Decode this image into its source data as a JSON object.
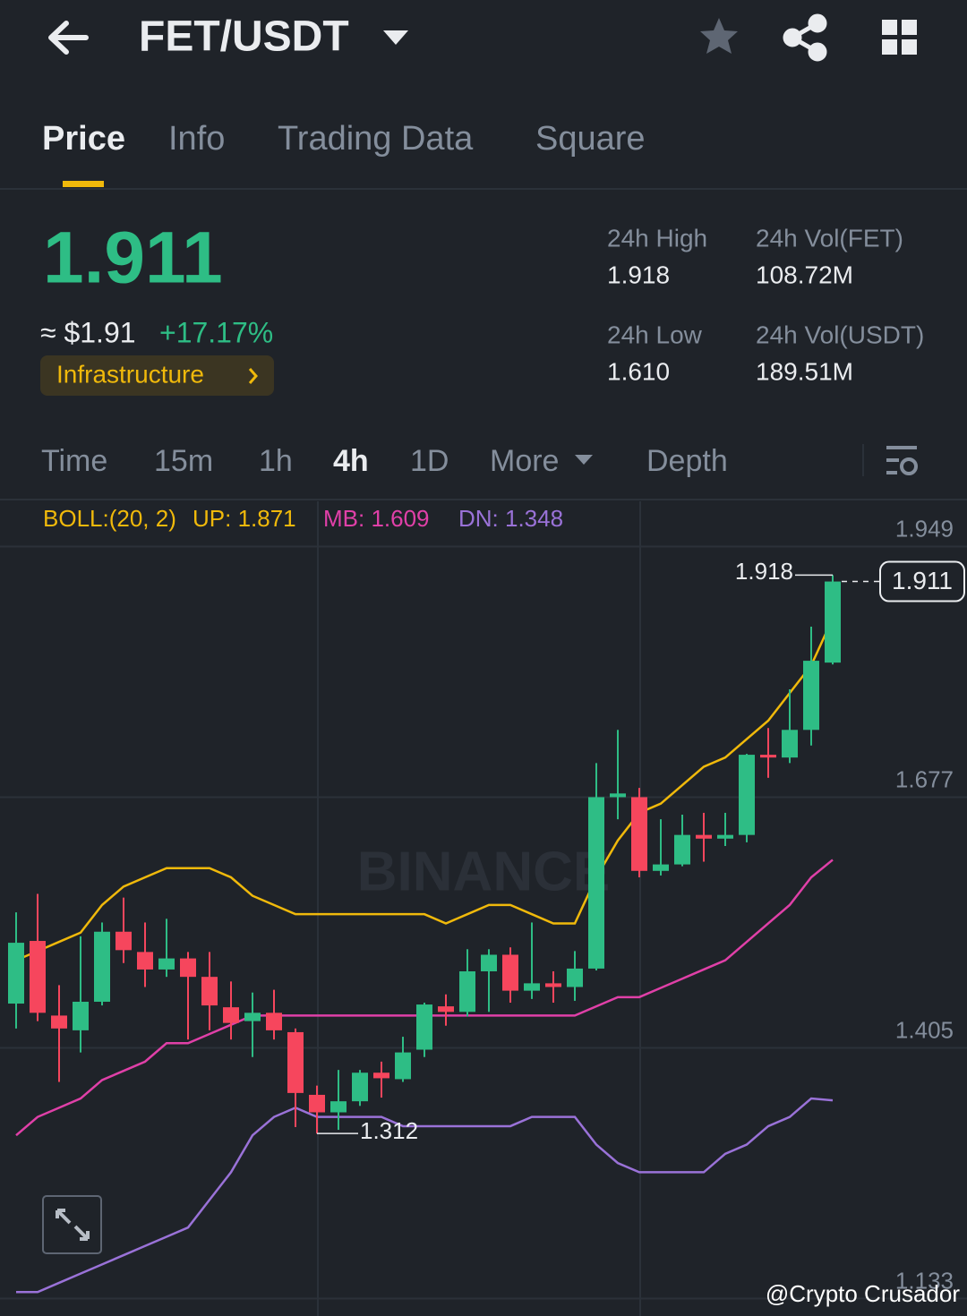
{
  "header": {
    "title": "FET/USDT"
  },
  "tabs": [
    "Price",
    "Info",
    "Trading Data",
    "Square"
  ],
  "price": {
    "last": "1.911",
    "fiat": "≈ $1.91",
    "change": "+17.17%",
    "tag": "Infrastructure"
  },
  "stats": [
    {
      "label": "24h High",
      "value": "1.918"
    },
    {
      "label": "24h Vol(FET)",
      "value": "108.72M"
    },
    {
      "label": "24h Low",
      "value": "1.610"
    },
    {
      "label": "24h Vol(USDT)",
      "value": "189.51M"
    }
  ],
  "intervals": [
    "Time",
    "15m",
    "1h",
    "4h",
    "1D",
    "More",
    "Depth"
  ],
  "watermark": "BINANCE",
  "credit": "@Crypto Crusador",
  "chart_data": {
    "type": "candlestick",
    "legend": [
      "BOLL:(20, 2)",
      "UP: 1.871",
      "MB: 1.609",
      "DN: 1.348"
    ],
    "legend_colors": [
      "#f0b90b",
      "#f0b90b",
      "#e040a8",
      "#9a72d8"
    ],
    "ylim": [
      1.114,
      1.998
    ],
    "yticks": [
      1.949,
      1.677,
      1.405,
      1.133
    ],
    "grid": true,
    "up_color": "#2ebd85",
    "down_color": "#f6465d",
    "open": [
      1.453,
      1.521,
      1.44,
      1.424,
      1.455,
      1.531,
      1.509,
      1.49,
      1.502,
      1.482,
      1.449,
      1.434,
      1.443,
      1.422,
      1.354,
      1.335,
      1.347,
      1.378,
      1.371,
      1.403,
      1.45,
      1.444,
      1.488,
      1.506,
      1.467,
      1.475,
      1.471,
      1.491,
      1.677,
      1.677,
      1.597,
      1.604,
      1.636,
      1.632,
      1.636,
      1.723,
      1.72,
      1.75,
      1.823
    ],
    "high": [
      1.552,
      1.572,
      1.473,
      1.526,
      1.541,
      1.568,
      1.541,
      1.545,
      1.509,
      1.509,
      1.477,
      1.465,
      1.468,
      1.426,
      1.364,
      1.381,
      1.381,
      1.39,
      1.417,
      1.454,
      1.463,
      1.512,
      1.512,
      1.514,
      1.541,
      1.488,
      1.51,
      1.714,
      1.75,
      1.687,
      1.653,
      1.658,
      1.66,
      1.66,
      1.724,
      1.752,
      1.794,
      1.862,
      1.918
    ],
    "low": [
      1.426,
      1.434,
      1.368,
      1.4,
      1.451,
      1.497,
      1.471,
      1.482,
      1.414,
      1.424,
      1.414,
      1.395,
      1.414,
      1.319,
      1.312,
      1.316,
      1.342,
      1.351,
      1.368,
      1.395,
      1.429,
      1.439,
      1.444,
      1.454,
      1.458,
      1.454,
      1.456,
      1.489,
      1.653,
      1.59,
      1.592,
      1.602,
      1.607,
      1.624,
      1.628,
      1.698,
      1.714,
      1.733,
      1.821
    ],
    "close": [
      1.519,
      1.443,
      1.426,
      1.455,
      1.531,
      1.511,
      1.49,
      1.502,
      1.482,
      1.451,
      1.432,
      1.443,
      1.424,
      1.356,
      1.335,
      1.347,
      1.378,
      1.372,
      1.4,
      1.452,
      1.444,
      1.488,
      1.506,
      1.467,
      1.475,
      1.471,
      1.491,
      1.677,
      1.681,
      1.597,
      1.604,
      1.636,
      1.632,
      1.636,
      1.723,
      1.72,
      1.75,
      1.825,
      1.911
    ],
    "bands": [
      {
        "color": "#f0b90b",
        "values": [
          1.5,
          1.51,
          1.52,
          1.53,
          1.56,
          1.58,
          1.59,
          1.6,
          1.6,
          1.6,
          1.59,
          1.57,
          1.56,
          1.55,
          1.55,
          1.55,
          1.55,
          1.55,
          1.55,
          1.55,
          1.54,
          1.55,
          1.56,
          1.56,
          1.55,
          1.54,
          1.54,
          1.59,
          1.63,
          1.66,
          1.67,
          1.69,
          1.71,
          1.72,
          1.74,
          1.76,
          1.79,
          1.82,
          1.871
        ]
      },
      {
        "color": "#e040a8",
        "values": [
          1.31,
          1.33,
          1.34,
          1.35,
          1.37,
          1.38,
          1.39,
          1.41,
          1.41,
          1.42,
          1.43,
          1.44,
          1.44,
          1.44,
          1.44,
          1.44,
          1.44,
          1.44,
          1.44,
          1.44,
          1.44,
          1.44,
          1.44,
          1.44,
          1.44,
          1.44,
          1.44,
          1.45,
          1.46,
          1.46,
          1.47,
          1.48,
          1.49,
          1.5,
          1.52,
          1.54,
          1.56,
          1.59,
          1.609
        ]
      },
      {
        "color": "#9a72d8",
        "values": [
          1.14,
          1.14,
          1.15,
          1.16,
          1.17,
          1.18,
          1.19,
          1.2,
          1.21,
          1.24,
          1.27,
          1.31,
          1.33,
          1.34,
          1.33,
          1.33,
          1.33,
          1.33,
          1.32,
          1.32,
          1.32,
          1.32,
          1.32,
          1.32,
          1.33,
          1.33,
          1.33,
          1.3,
          1.28,
          1.27,
          1.27,
          1.27,
          1.27,
          1.29,
          1.3,
          1.32,
          1.33,
          1.35,
          1.348
        ]
      }
    ],
    "max_label": 1.918,
    "min_label": 1.312,
    "last_price": 1.911
  }
}
